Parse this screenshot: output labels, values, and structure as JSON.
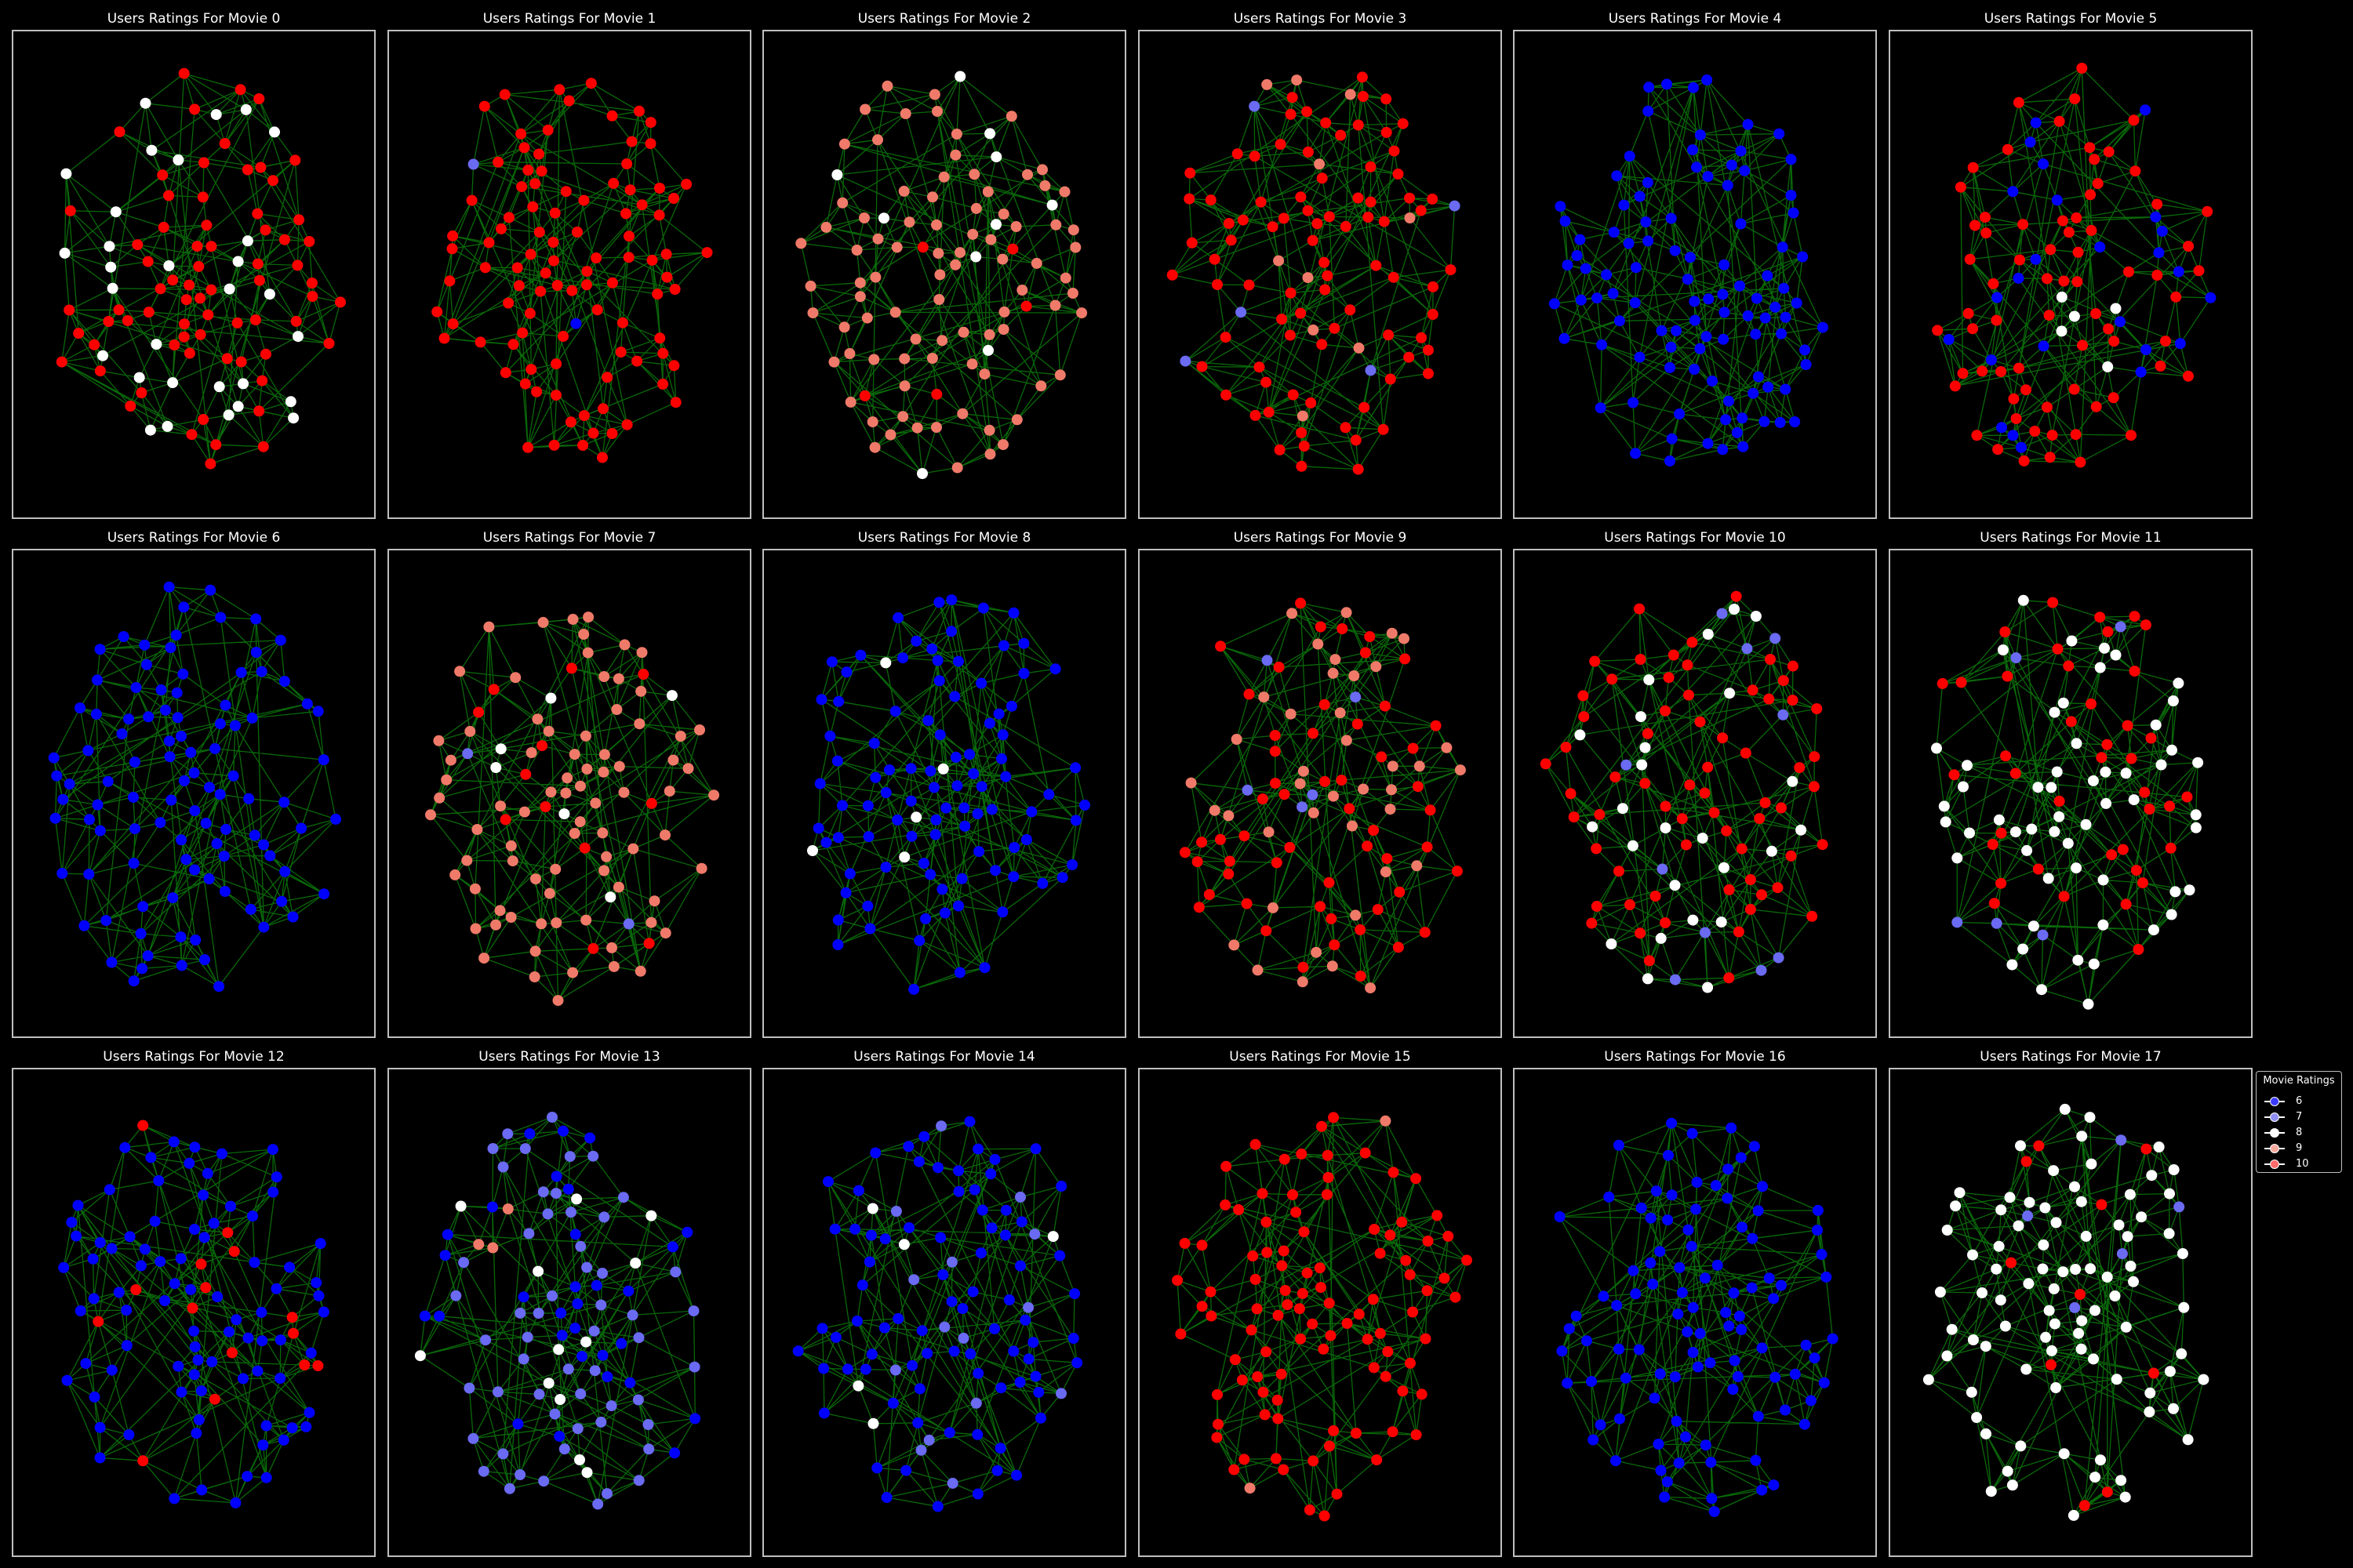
{
  "chart_data": {
    "type": "network-grid",
    "panel_title_prefix": "Users Ratings For Movie ",
    "panels": [
      {
        "movie": 0,
        "title": "Users Ratings For Movie 0",
        "node_ratings": {
          "10": 70,
          "8": 30
        }
      },
      {
        "movie": 1,
        "title": "Users Ratings For Movie 1",
        "node_ratings": {
          "10": 98,
          "7": 1,
          "6": 1
        }
      },
      {
        "movie": 2,
        "title": "Users Ratings For Movie 2",
        "node_ratings": {
          "9": 85,
          "8": 10,
          "10": 5
        }
      },
      {
        "movie": 3,
        "title": "Users Ratings For Movie 3",
        "node_ratings": {
          "10": 85,
          "9": 10,
          "7": 5
        }
      },
      {
        "movie": 4,
        "title": "Users Ratings For Movie 4",
        "node_ratings": {
          "6": 100
        }
      },
      {
        "movie": 5,
        "title": "Users Ratings For Movie 5",
        "node_ratings": {
          "10": 70,
          "6": 25,
          "8": 5
        }
      },
      {
        "movie": 6,
        "title": "Users Ratings For Movie 6",
        "node_ratings": {
          "6": 100
        }
      },
      {
        "movie": 7,
        "title": "Users Ratings For Movie 7",
        "node_ratings": {
          "9": 80,
          "10": 12,
          "8": 6,
          "7": 2
        }
      },
      {
        "movie": 8,
        "title": "Users Ratings For Movie 8",
        "node_ratings": {
          "6": 95,
          "8": 5
        }
      },
      {
        "movie": 9,
        "title": "Users Ratings For Movie 9",
        "node_ratings": {
          "10": 55,
          "9": 40,
          "7": 5
        }
      },
      {
        "movie": 10,
        "title": "Users Ratings For Movie 10",
        "node_ratings": {
          "10": 65,
          "8": 25,
          "7": 10
        }
      },
      {
        "movie": 11,
        "title": "Users Ratings For Movie 11",
        "node_ratings": {
          "8": 55,
          "10": 40,
          "7": 5
        }
      },
      {
        "movie": 12,
        "title": "Users Ratings For Movie 12",
        "node_ratings": {
          "6": 85,
          "10": 15
        }
      },
      {
        "movie": 13,
        "title": "Users Ratings For Movie 13",
        "node_ratings": {
          "7": 55,
          "6": 30,
          "8": 12,
          "9": 3
        }
      },
      {
        "movie": 14,
        "title": "Users Ratings For Movie 14",
        "node_ratings": {
          "6": 80,
          "7": 15,
          "8": 5
        }
      },
      {
        "movie": 15,
        "title": "Users Ratings For Movie 15",
        "node_ratings": {
          "10": 98,
          "9": 2
        }
      },
      {
        "movie": 16,
        "title": "Users Ratings For Movie 16",
        "node_ratings": {
          "6": 100
        }
      },
      {
        "movie": 17,
        "title": "Users Ratings For Movie 17",
        "node_ratings": {
          "8": 85,
          "10": 10,
          "7": 5
        }
      }
    ],
    "legend": {
      "title": "Movie Ratings",
      "placement": "right",
      "entries": [
        {
          "label": "6",
          "color": "#0000ff"
        },
        {
          "label": "7",
          "color": "#6b6bf0"
        },
        {
          "label": "8",
          "color": "#ffffff"
        },
        {
          "label": "9",
          "color": "#f07a6a"
        },
        {
          "label": "10",
          "color": "#ff0000"
        }
      ]
    },
    "colors": {
      "6": "#0000ff",
      "7": "#6a6af2",
      "8": "#ffffff",
      "9": "#f07a6a",
      "10": "#ff0000",
      "edge": "#0a7a0a",
      "background": "#000000",
      "frame": "#bfbfbf"
    }
  }
}
